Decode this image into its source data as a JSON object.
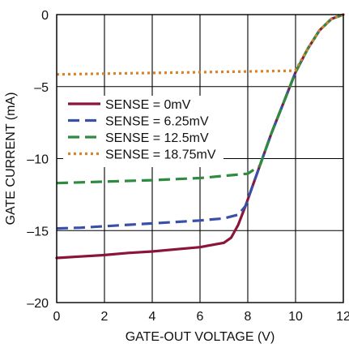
{
  "chart_data": {
    "type": "line",
    "title": "",
    "xlabel": "GATE-OUT VOLTAGE (V)",
    "ylabel": "GATE CURRENT (mA)",
    "xlim": [
      0,
      12
    ],
    "ylim": [
      -20,
      0
    ],
    "x_ticks": [
      0,
      2,
      4,
      6,
      8,
      10,
      12
    ],
    "y_ticks": [
      0,
      -5,
      -10,
      -15,
      -20
    ],
    "x_tick_labels": [
      "0",
      "2",
      "4",
      "6",
      "8",
      "10",
      "12"
    ],
    "y_tick_labels": [
      "0",
      "–5",
      "–10",
      "–15",
      "–20"
    ],
    "grid": true,
    "legend_position": "upper-left",
    "series": [
      {
        "name": "SENSE = 0mV",
        "color": "#8b1538",
        "style": "solid",
        "points": [
          [
            0,
            -16.9
          ],
          [
            1,
            -16.8
          ],
          [
            2,
            -16.7
          ],
          [
            3,
            -16.55
          ],
          [
            4,
            -16.45
          ],
          [
            5,
            -16.3
          ],
          [
            6,
            -16.15
          ],
          [
            7,
            -15.85
          ],
          [
            7.3,
            -15.5
          ],
          [
            7.6,
            -14.6
          ],
          [
            7.9,
            -13.3
          ],
          [
            8.5,
            -10.5
          ],
          [
            9,
            -8.2
          ],
          [
            9.5,
            -6.1
          ],
          [
            10,
            -4.0
          ],
          [
            10.5,
            -2.4
          ],
          [
            11,
            -1.1
          ],
          [
            11.5,
            -0.3
          ],
          [
            12,
            0
          ]
        ]
      },
      {
        "name": "SENSE = 6.25mV",
        "color": "#3a50a8",
        "style": "dashed",
        "points": [
          [
            0,
            -14.85
          ],
          [
            1,
            -14.8
          ],
          [
            2,
            -14.7
          ],
          [
            3,
            -14.6
          ],
          [
            4,
            -14.5
          ],
          [
            5,
            -14.4
          ],
          [
            6,
            -14.3
          ],
          [
            7,
            -14.15
          ],
          [
            7.6,
            -13.9
          ],
          [
            7.9,
            -13.3
          ],
          [
            8.5,
            -10.5
          ],
          [
            9,
            -8.2
          ],
          [
            9.5,
            -6.1
          ],
          [
            10,
            -4.0
          ],
          [
            10.5,
            -2.4
          ],
          [
            11,
            -1.1
          ],
          [
            11.5,
            -0.3
          ],
          [
            12,
            0
          ]
        ]
      },
      {
        "name": "SENSE = 12.5mV",
        "color": "#2e8b40",
        "style": "dashed",
        "points": [
          [
            0,
            -11.7
          ],
          [
            2,
            -11.6
          ],
          [
            4,
            -11.5
          ],
          [
            6,
            -11.35
          ],
          [
            7,
            -11.2
          ],
          [
            8,
            -11.05
          ],
          [
            8.5,
            -10.5
          ],
          [
            9,
            -8.2
          ],
          [
            9.5,
            -6.1
          ],
          [
            10,
            -4.0
          ],
          [
            10.5,
            -2.4
          ],
          [
            11,
            -1.1
          ],
          [
            11.5,
            -0.3
          ],
          [
            12,
            0
          ]
        ]
      },
      {
        "name": "SENSE = 18.75mV",
        "color": "#d9822b",
        "style": "dotted",
        "points": [
          [
            0,
            -4.15
          ],
          [
            2,
            -4.1
          ],
          [
            4,
            -4.05
          ],
          [
            6,
            -4.0
          ],
          [
            8,
            -3.95
          ],
          [
            9.9,
            -3.9
          ],
          [
            10,
            -3.85
          ],
          [
            10.5,
            -2.4
          ],
          [
            11,
            -1.1
          ],
          [
            11.5,
            -0.3
          ],
          [
            12,
            0
          ]
        ]
      }
    ]
  }
}
